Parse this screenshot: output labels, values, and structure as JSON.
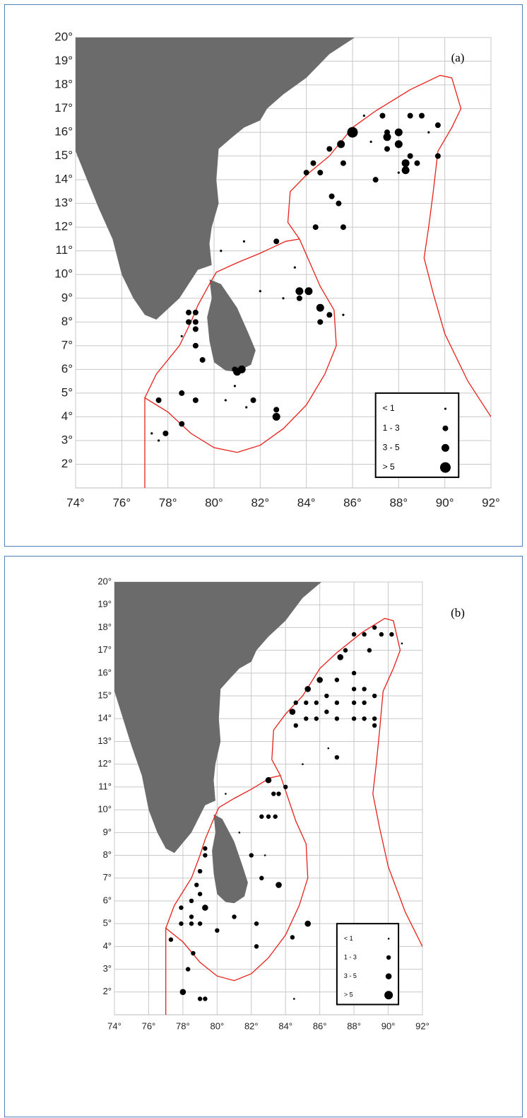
{
  "panels": [
    {
      "label": "(a)",
      "xlim": [
        74,
        92
      ],
      "ylim": [
        1,
        20
      ],
      "xticks": [
        {
          "value": 74,
          "label": "74°"
        },
        {
          "value": 76,
          "label": "76°"
        },
        {
          "value": 78,
          "label": "78°"
        },
        {
          "value": 80,
          "label": "80°"
        },
        {
          "value": 82,
          "label": "82°"
        },
        {
          "value": 84,
          "label": "84°"
        },
        {
          "value": 86,
          "label": "86°"
        },
        {
          "value": 88,
          "label": "88°"
        },
        {
          "value": 90,
          "label": "90°"
        },
        {
          "value": 92,
          "label": "92°"
        }
      ],
      "yticks": [
        {
          "value": 2,
          "label": "2°"
        },
        {
          "value": 3,
          "label": "3°"
        },
        {
          "value": 4,
          "label": "4°"
        },
        {
          "value": 5,
          "label": "5°"
        },
        {
          "value": 6,
          "label": "6°"
        },
        {
          "value": 7,
          "label": "7°"
        },
        {
          "value": 8,
          "label": "8°"
        },
        {
          "value": 9,
          "label": "9°"
        },
        {
          "value": 10,
          "label": "10°"
        },
        {
          "value": 11,
          "label": "11°"
        },
        {
          "value": 12,
          "label": "12°"
        },
        {
          "value": 13,
          "label": "13°"
        },
        {
          "value": 14,
          "label": "14°"
        },
        {
          "value": 15,
          "label": "15°"
        },
        {
          "value": 16,
          "label": "16°"
        },
        {
          "value": 17,
          "label": "17°"
        },
        {
          "value": 18,
          "label": "18°"
        },
        {
          "value": 19,
          "label": "19°"
        },
        {
          "value": 20,
          "label": "20°"
        }
      ],
      "legend": [
        "< 1",
        "1 - 3",
        "3 - 5",
        "> 5"
      ],
      "points": [
        [
          86,
          16,
          4
        ],
        [
          85.5,
          15.5,
          3
        ],
        [
          85,
          15.3,
          2
        ],
        [
          87.3,
          16.7,
          2
        ],
        [
          87.5,
          16,
          2
        ],
        [
          87.5,
          15.8,
          3
        ],
        [
          88,
          16,
          3
        ],
        [
          88,
          15.5,
          3
        ],
        [
          88.5,
          16.7,
          2
        ],
        [
          88.5,
          15,
          2
        ],
        [
          88.3,
          14.7,
          3
        ],
        [
          88.3,
          14.4,
          3
        ],
        [
          88.8,
          14.7,
          2
        ],
        [
          89,
          16.7,
          2
        ],
        [
          89.7,
          16.3,
          2
        ],
        [
          89.7,
          15,
          2
        ],
        [
          87,
          14,
          2
        ],
        [
          87.5,
          15.3,
          2
        ],
        [
          84,
          14.3,
          2
        ],
        [
          84.3,
          14.7,
          2
        ],
        [
          84.6,
          14.3,
          2
        ],
        [
          85.6,
          14.7,
          2
        ],
        [
          85.1,
          13.3,
          2
        ],
        [
          85.4,
          13,
          2
        ],
        [
          84.4,
          12,
          2
        ],
        [
          85.6,
          12,
          2
        ],
        [
          83.7,
          9.3,
          3
        ],
        [
          84.1,
          9.3,
          3
        ],
        [
          83.7,
          9,
          2
        ],
        [
          84.6,
          8.6,
          3
        ],
        [
          84.6,
          8,
          2
        ],
        [
          85,
          8.3,
          2
        ],
        [
          82.7,
          11.4,
          2
        ],
        [
          82.7,
          4.3,
          2
        ],
        [
          82.7,
          4,
          3
        ],
        [
          81,
          5.9,
          3
        ],
        [
          81.2,
          6,
          3
        ],
        [
          80.9,
          6,
          2
        ],
        [
          81.7,
          4.7,
          2
        ],
        [
          79.2,
          8.4,
          2
        ],
        [
          79.2,
          8,
          2
        ],
        [
          79.2,
          7.7,
          2
        ],
        [
          79.2,
          7,
          2
        ],
        [
          79.5,
          6.4,
          2
        ],
        [
          78.9,
          8.4,
          2
        ],
        [
          78.9,
          8,
          2
        ],
        [
          77.6,
          4.7,
          2
        ],
        [
          78.6,
          5,
          2
        ],
        [
          79.2,
          4.7,
          2
        ],
        [
          78.6,
          3.7,
          2
        ],
        [
          77.9,
          3.3,
          2
        ],
        [
          78.6,
          7.4,
          1
        ],
        [
          80.5,
          4.7,
          1
        ],
        [
          82,
          9.3,
          1
        ],
        [
          83,
          9,
          1
        ],
        [
          85.6,
          8.3,
          1
        ],
        [
          86.8,
          15.6,
          1
        ],
        [
          86.5,
          16.7,
          1
        ],
        [
          88,
          14.3,
          1
        ],
        [
          89.3,
          16,
          1
        ],
        [
          81.3,
          11.4,
          1
        ],
        [
          80.3,
          11,
          1
        ],
        [
          83.5,
          10.3,
          1
        ],
        [
          77.3,
          3.3,
          1
        ],
        [
          77.6,
          3,
          1
        ],
        [
          80.9,
          5.3,
          1
        ],
        [
          81.4,
          4.4,
          1
        ]
      ]
    },
    {
      "label": "(b)",
      "xlim": [
        74,
        92
      ],
      "ylim": [
        1,
        20
      ],
      "xticks": [
        {
          "value": 74,
          "label": "74°"
        },
        {
          "value": 76,
          "label": "76°"
        },
        {
          "value": 78,
          "label": "78°"
        },
        {
          "value": 80,
          "label": "80°"
        },
        {
          "value": 82,
          "label": "82°"
        },
        {
          "value": 84,
          "label": "84°"
        },
        {
          "value": 86,
          "label": "86°"
        },
        {
          "value": 88,
          "label": "88°"
        },
        {
          "value": 90,
          "label": "90°"
        },
        {
          "value": 92,
          "label": "92°"
        }
      ],
      "yticks": [
        {
          "value": 2,
          "label": "2°"
        },
        {
          "value": 3,
          "label": "3°"
        },
        {
          "value": 4,
          "label": "4°"
        },
        {
          "value": 5,
          "label": "5°"
        },
        {
          "value": 6,
          "label": "6°"
        },
        {
          "value": 7,
          "label": "7°"
        },
        {
          "value": 8,
          "label": "8°"
        },
        {
          "value": 9,
          "label": "9°"
        },
        {
          "value": 10,
          "label": "10°"
        },
        {
          "value": 11,
          "label": "11°"
        },
        {
          "value": 12,
          "label": "12°"
        },
        {
          "value": 13,
          "label": "13°"
        },
        {
          "value": 14,
          "label": "14°"
        },
        {
          "value": 15,
          "label": "15°"
        },
        {
          "value": 16,
          "label": "16°"
        },
        {
          "value": 17,
          "label": "17°"
        },
        {
          "value": 18,
          "label": "18°"
        },
        {
          "value": 19,
          "label": "19°"
        },
        {
          "value": 20,
          "label": "20°"
        }
      ],
      "legend": [
        "< 1",
        "1 - 3",
        "3 - 5",
        "> 5"
      ],
      "points": [
        [
          83,
          11.3,
          3
        ],
        [
          83.6,
          6.7,
          3
        ],
        [
          85.3,
          5,
          3
        ],
        [
          78,
          2,
          3
        ],
        [
          85.3,
          15.3,
          3
        ],
        [
          86,
          15.7,
          3
        ],
        [
          84.4,
          14.3,
          3
        ],
        [
          87.2,
          16.7,
          3
        ],
        [
          88.9,
          17,
          2
        ],
        [
          87.5,
          17,
          2
        ],
        [
          88,
          17.7,
          2
        ],
        [
          88.6,
          17.7,
          2
        ],
        [
          89.2,
          18,
          2
        ],
        [
          89.6,
          17.7,
          2
        ],
        [
          90.2,
          17.7,
          2
        ],
        [
          90.8,
          17.3,
          1
        ],
        [
          88,
          16,
          2
        ],
        [
          88,
          15.3,
          2
        ],
        [
          88,
          14.7,
          2
        ],
        [
          88,
          14,
          2
        ],
        [
          88.6,
          15.3,
          2
        ],
        [
          88.6,
          14.7,
          2
        ],
        [
          88.6,
          14,
          2
        ],
        [
          89.2,
          15,
          2
        ],
        [
          89.2,
          14,
          2
        ],
        [
          89.2,
          13.7,
          2
        ],
        [
          87,
          15.7,
          2
        ],
        [
          87,
          14.7,
          2
        ],
        [
          87,
          14,
          2
        ],
        [
          86.4,
          15,
          2
        ],
        [
          86.4,
          14.3,
          2
        ],
        [
          85.8,
          14.7,
          2
        ],
        [
          85.8,
          14,
          2
        ],
        [
          85.2,
          14.7,
          2
        ],
        [
          85.2,
          14,
          2
        ],
        [
          84.6,
          13.7,
          2
        ],
        [
          84.6,
          14.7,
          2
        ],
        [
          86.5,
          12.7,
          1
        ],
        [
          87,
          12.3,
          2
        ],
        [
          85,
          12,
          1
        ],
        [
          83.3,
          10.7,
          2
        ],
        [
          83.6,
          10.7,
          2
        ],
        [
          82.6,
          9.7,
          2
        ],
        [
          83,
          9.7,
          2
        ],
        [
          83.4,
          9.7,
          2
        ],
        [
          82,
          8,
          2
        ],
        [
          82.6,
          7,
          2
        ],
        [
          84,
          11,
          2
        ],
        [
          79.3,
          8.3,
          2
        ],
        [
          79.3,
          8,
          2
        ],
        [
          79,
          7.3,
          2
        ],
        [
          78.8,
          6.7,
          2
        ],
        [
          79,
          6.3,
          2
        ],
        [
          78.5,
          6,
          2
        ],
        [
          79.3,
          5.7,
          3
        ],
        [
          78.5,
          5.3,
          2
        ],
        [
          78.5,
          5,
          2
        ],
        [
          79,
          5,
          2
        ],
        [
          77.9,
          5.7,
          2
        ],
        [
          77.9,
          5,
          2
        ],
        [
          77.3,
          4.3,
          2
        ],
        [
          78.3,
          3,
          2
        ],
        [
          78.6,
          3.7,
          2
        ],
        [
          79,
          1.7,
          2
        ],
        [
          79.3,
          1.7,
          2
        ],
        [
          81,
          5.3,
          2
        ],
        [
          82.3,
          5,
          2
        ],
        [
          82.3,
          4,
          2
        ],
        [
          84.4,
          4.4,
          2
        ],
        [
          80,
          4.7,
          2
        ],
        [
          81.3,
          9,
          1
        ],
        [
          82.8,
          8,
          1
        ],
        [
          84.5,
          1.7,
          1
        ],
        [
          80.5,
          10.7,
          1
        ]
      ]
    }
  ]
}
